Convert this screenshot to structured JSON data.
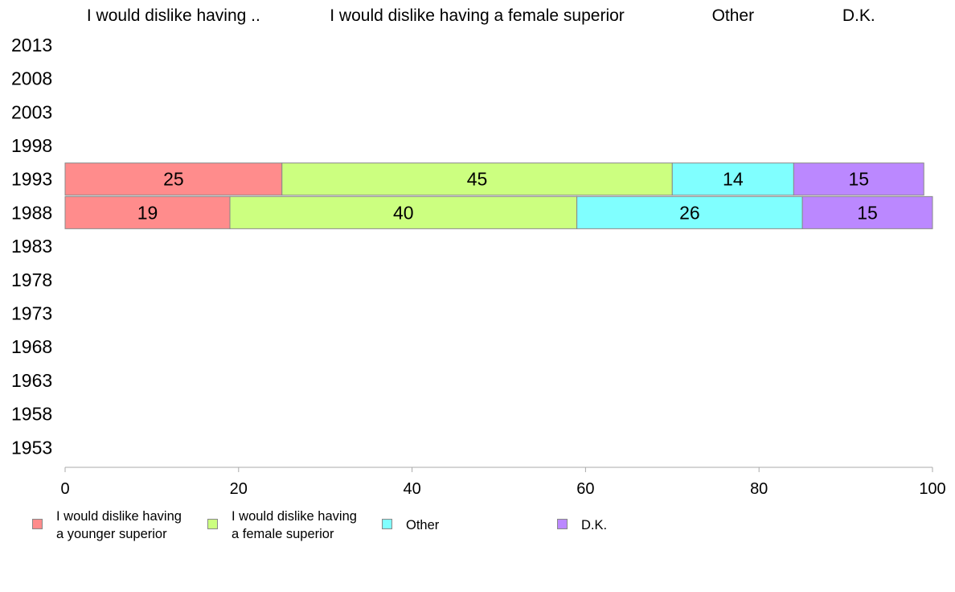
{
  "chart_data": {
    "type": "bar",
    "orientation": "horizontal",
    "stacked": true,
    "categories": [
      "2013",
      "2008",
      "2003",
      "1998",
      "1993",
      "1988",
      "1983",
      "1978",
      "1973",
      "1968",
      "1963",
      "1958",
      "1953"
    ],
    "column_headers": [
      "I would dislike having ..",
      "I would dislike having a female superior",
      "Other",
      "D.K."
    ],
    "series": [
      {
        "name": "I would dislike having\na younger superior",
        "color": "#ff8c8c",
        "values": [
          null,
          null,
          null,
          null,
          25,
          19,
          null,
          null,
          null,
          null,
          null,
          null,
          null
        ]
      },
      {
        "name": "I would dislike having\na female superior",
        "color": "#ccff80",
        "values": [
          null,
          null,
          null,
          null,
          45,
          40,
          null,
          null,
          null,
          null,
          null,
          null,
          null
        ]
      },
      {
        "name": "Other",
        "color": "#80ffff",
        "values": [
          null,
          null,
          null,
          null,
          14,
          26,
          null,
          null,
          null,
          null,
          null,
          null,
          null
        ]
      },
      {
        "name": "D.K.",
        "color": "#bb88ff",
        "values": [
          null,
          null,
          null,
          null,
          15,
          15,
          null,
          null,
          null,
          null,
          null,
          null,
          null
        ]
      }
    ],
    "xlim": [
      0,
      100
    ],
    "xticks": [
      "0",
      "20",
      "40",
      "60",
      "80",
      "100"
    ],
    "legend_position": "bottom",
    "grid": false
  }
}
